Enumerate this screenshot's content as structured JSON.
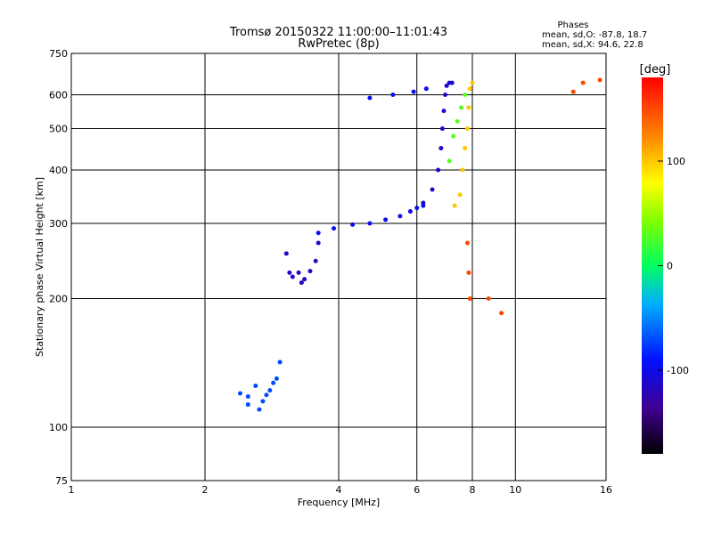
{
  "chart_data": {
    "type": "scatter",
    "title": "Tromsø 20150322 11:00:00–11:01:43",
    "subtitle": "RwPretec (8p)",
    "stats": {
      "heading": "Phases",
      "line_o": "mean, sd,O: -87.8, 18.7",
      "line_x": "mean, sd,X:  94.6, 22.8"
    },
    "xlabel": "Frequency [MHz]",
    "ylabel": "Stationary phase Virtual Height [km]",
    "xscale": "log",
    "yscale": "log",
    "xlim": [
      1,
      16
    ],
    "ylim": [
      75,
      750
    ],
    "x_ticks": [
      "1",
      "2",
      "4",
      "6",
      "8",
      "10",
      "16"
    ],
    "y_ticks": [
      "75",
      "100",
      "200",
      "300",
      "400",
      "500",
      "600",
      "750"
    ],
    "grid": true,
    "colorbar": {
      "label": "[deg]",
      "range": [
        -180,
        180
      ],
      "ticks": [
        "100",
        "0",
        "-100"
      ],
      "tick_values": [
        100,
        0,
        -100
      ]
    },
    "series": [
      {
        "x": [
          2.4,
          2.5,
          2.6,
          2.7,
          2.8,
          2.9,
          2.95,
          2.5,
          2.65,
          2.85,
          2.75
        ],
        "y": [
          120,
          118,
          125,
          115,
          122,
          130,
          142,
          113,
          110,
          127,
          119
        ],
        "phase": -70
      },
      {
        "x": [
          3.05,
          3.15,
          3.25,
          3.35,
          3.45,
          3.55,
          3.6,
          3.1,
          3.3
        ],
        "y": [
          255,
          225,
          230,
          222,
          232,
          245,
          270,
          230,
          218
        ],
        "phase": -115
      },
      {
        "x": [
          3.6,
          3.9,
          4.3,
          4.7,
          5.1,
          5.5,
          5.8,
          6.0,
          6.2
        ],
        "y": [
          285,
          292,
          298,
          300,
          306,
          312,
          320,
          326,
          330
        ],
        "phase": -100
      },
      {
        "x": [
          6.2,
          6.5,
          6.7,
          6.8,
          6.85,
          6.9,
          6.95,
          7.0,
          7.1,
          7.2
        ],
        "y": [
          335,
          360,
          400,
          450,
          500,
          550,
          600,
          630,
          640,
          640
        ],
        "phase": -110
      },
      {
        "x": [
          7.3,
          7.5,
          7.6,
          7.7,
          7.8,
          7.85,
          7.9,
          8.0
        ],
        "y": [
          330,
          350,
          400,
          450,
          500,
          560,
          620,
          640
        ],
        "phase": 100
      },
      {
        "x": [
          7.1,
          7.25,
          7.4,
          7.55,
          7.7
        ],
        "y": [
          420,
          480,
          520,
          560,
          600
        ],
        "phase": 30
      },
      {
        "x": [
          7.8,
          7.85,
          7.9,
          8.7,
          9.3,
          13.5,
          14.2,
          15.5
        ],
        "y": [
          270,
          230,
          200,
          200,
          185,
          610,
          640,
          650
        ],
        "phase": 150
      },
      {
        "x": [
          4.7,
          5.3,
          5.9,
          6.3
        ],
        "y": [
          590,
          600,
          610,
          620
        ],
        "phase": -95
      }
    ]
  }
}
